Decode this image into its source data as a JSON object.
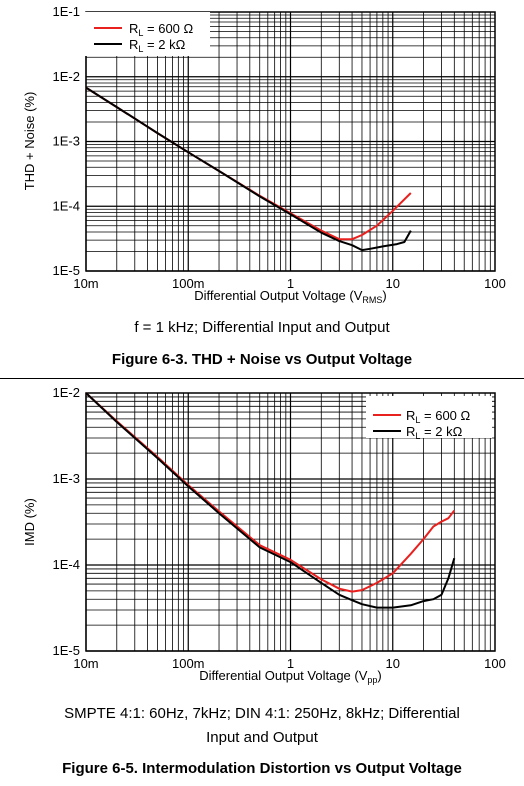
{
  "figures": [
    {
      "caption": "f = 1 kHz; Differential Input and Output",
      "title": "Figure 6-3. THD + Noise vs Output Voltage"
    },
    {
      "caption_line1": "SMPTE 4:1: 60Hz, 7kHz; DIN 4:1: 250Hz, 8kHz; Differential",
      "caption_line2": "Input and Output",
      "title": "Figure 6-5. Intermodulation Distortion vs Output Voltage"
    }
  ],
  "chart_data": [
    {
      "type": "line",
      "xscale": "log",
      "yscale": "log",
      "xlim": [
        0.01,
        100
      ],
      "ylim": [
        1e-05,
        0.1
      ],
      "grid": true,
      "legend_position": "top-left",
      "xlabel": "Differential Output Voltage (V",
      "xlabel_sub": "RMS",
      "xlabel_end": ")",
      "ylabel": "THD + Noise (%)",
      "x_tick_labels": [
        "10m",
        "100m",
        "1",
        "10",
        "100"
      ],
      "y_tick_labels": [
        "1E-5",
        "1E-4",
        "1E-3",
        "1E-2",
        "1E-1"
      ],
      "series": [
        {
          "name": "R",
          "name_sub": "L",
          "name_rest": " = 600 Ω",
          "color": "#e8201e",
          "points": [
            [
              0.01,
              0.0068
            ],
            [
              0.02,
              0.0034
            ],
            [
              0.05,
              0.00135
            ],
            [
              0.1,
              0.00068
            ],
            [
              0.2,
              0.00035
            ],
            [
              0.5,
              0.000145
            ],
            [
              1.0,
              7.8e-05
            ],
            [
              2.0,
              4.2e-05
            ],
            [
              3.0,
              3.1e-05
            ],
            [
              4.0,
              3.1e-05
            ],
            [
              5.0,
              3.6e-05
            ],
            [
              7.0,
              5e-05
            ],
            [
              10.0,
              8.5e-05
            ],
            [
              15.0,
              0.00016
            ]
          ]
        },
        {
          "name": "R",
          "name_sub": "L",
          "name_rest": " = 2 kΩ",
          "color": "#000000",
          "points": [
            [
              0.01,
              0.0068
            ],
            [
              0.02,
              0.0034
            ],
            [
              0.05,
              0.00135
            ],
            [
              0.1,
              0.00068
            ],
            [
              0.2,
              0.00035
            ],
            [
              0.5,
              0.000142
            ],
            [
              1.0,
              7.5e-05
            ],
            [
              2.0,
              3.9e-05
            ],
            [
              3.0,
              2.9e-05
            ],
            [
              4.0,
              2.5e-05
            ],
            [
              5.0,
              2.1e-05
            ],
            [
              6.0,
              2.2e-05
            ],
            [
              8.0,
              2.4e-05
            ],
            [
              11.0,
              2.6e-05
            ],
            [
              13.0,
              2.8e-05
            ],
            [
              15.0,
              4.2e-05
            ]
          ]
        }
      ]
    },
    {
      "type": "line",
      "xscale": "log",
      "yscale": "log",
      "xlim": [
        0.01,
        100
      ],
      "ylim": [
        1e-05,
        0.01
      ],
      "grid": true,
      "legend_position": "top-right",
      "xlabel": "Differential Output Voltage (V",
      "xlabel_sub": "pp",
      "xlabel_end": ")",
      "ylabel": "IMD (%)",
      "x_tick_labels": [
        "10m",
        "100m",
        "1",
        "10",
        "100"
      ],
      "y_tick_labels": [
        "1E-5",
        "1E-4",
        "1E-3",
        "1E-2"
      ],
      "series": [
        {
          "name": "R",
          "name_sub": "L",
          "name_rest": " =  600 Ω",
          "color": "#e8201e",
          "points": [
            [
              0.01,
              0.01
            ],
            [
              0.02,
              0.0047
            ],
            [
              0.05,
              0.0018
            ],
            [
              0.1,
              0.00085
            ],
            [
              0.2,
              0.00042
            ],
            [
              0.5,
              0.00017
            ],
            [
              1.0,
              0.000115
            ],
            [
              2.0,
              6.8e-05
            ],
            [
              3.0,
              5.3e-05
            ],
            [
              4.0,
              4.9e-05
            ],
            [
              5.0,
              5.1e-05
            ],
            [
              7.0,
              6.2e-05
            ],
            [
              10.0,
              8e-05
            ],
            [
              15.0,
              0.000135
            ],
            [
              20.0,
              0.0002
            ],
            [
              25.0,
              0.00028
            ],
            [
              30.0,
              0.00032
            ],
            [
              35.0,
              0.00035
            ],
            [
              40.0,
              0.00043
            ]
          ]
        },
        {
          "name": "R",
          "name_sub": "L",
          "name_rest": " =  2 kΩ",
          "color": "#000000",
          "points": [
            [
              0.01,
              0.01
            ],
            [
              0.02,
              0.0046
            ],
            [
              0.05,
              0.00175
            ],
            [
              0.1,
              0.00082
            ],
            [
              0.2,
              0.0004
            ],
            [
              0.5,
              0.00016
            ],
            [
              1.0,
              0.000108
            ],
            [
              2.0,
              6.2e-05
            ],
            [
              3.0,
              4.5e-05
            ],
            [
              4.0,
              3.9e-05
            ],
            [
              5.0,
              3.5e-05
            ],
            [
              7.0,
              3.2e-05
            ],
            [
              10.0,
              3.2e-05
            ],
            [
              15.0,
              3.4e-05
            ],
            [
              20.0,
              3.8e-05
            ],
            [
              25.0,
              4e-05
            ],
            [
              30.0,
              4.5e-05
            ],
            [
              35.0,
              7e-05
            ],
            [
              40.0,
              0.00012
            ]
          ]
        }
      ]
    }
  ]
}
